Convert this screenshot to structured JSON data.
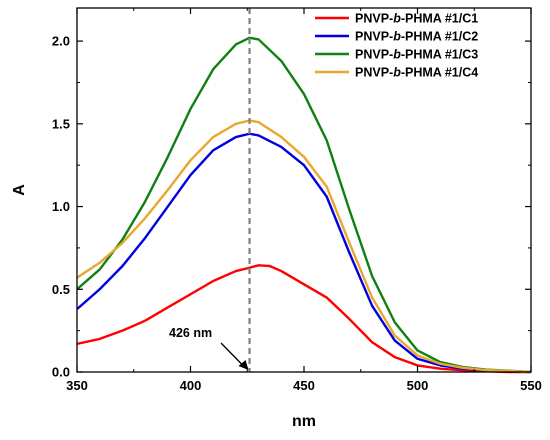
{
  "chart_data": {
    "type": "line",
    "xlabel": "nm",
    "ylabel": "A",
    "xlim": [
      350,
      550
    ],
    "ylim": [
      0.0,
      2.2
    ],
    "x_ticks": [
      "350",
      "400",
      "450",
      "500",
      "550"
    ],
    "y_ticks": [
      "0.0",
      "0.5",
      "1.0",
      "1.5",
      "2.0"
    ],
    "grid": false,
    "legend_position": "top-right",
    "vline": {
      "x": 426,
      "color": "#808080",
      "style": "dashed"
    },
    "annotations": [
      {
        "text": "426 nm",
        "x": 426,
        "y": 0.0
      }
    ],
    "series": [
      {
        "name": "PNVP-b-PHMA #1/C1",
        "color": "#ff0000",
        "x": [
          350,
          360,
          370,
          380,
          390,
          400,
          410,
          420,
          426,
          430,
          435,
          440,
          450,
          460,
          470,
          480,
          490,
          500,
          510,
          520,
          530,
          540,
          550
        ],
        "y": [
          0.17,
          0.2,
          0.25,
          0.31,
          0.39,
          0.47,
          0.55,
          0.61,
          0.63,
          0.645,
          0.64,
          0.61,
          0.53,
          0.45,
          0.32,
          0.18,
          0.09,
          0.04,
          0.02,
          0.01,
          0.005,
          0.0,
          0.0
        ]
      },
      {
        "name": "PNVP-b-PHMA #1/C2",
        "color": "#0000e0",
        "x": [
          350,
          360,
          370,
          380,
          390,
          400,
          410,
          420,
          426,
          430,
          440,
          450,
          460,
          470,
          480,
          490,
          500,
          510,
          520,
          530,
          540,
          550
        ],
        "y": [
          0.38,
          0.5,
          0.64,
          0.81,
          1.0,
          1.19,
          1.34,
          1.42,
          1.44,
          1.43,
          1.36,
          1.25,
          1.06,
          0.72,
          0.4,
          0.19,
          0.08,
          0.04,
          0.02,
          0.01,
          0.005,
          0.0
        ]
      },
      {
        "name": "PNVP-b-PHMA #1/C3",
        "color": "#108010",
        "x": [
          350,
          360,
          370,
          380,
          390,
          400,
          410,
          420,
          426,
          430,
          440,
          450,
          460,
          470,
          480,
          490,
          500,
          510,
          520,
          530,
          540,
          550
        ],
        "y": [
          0.5,
          0.62,
          0.8,
          1.03,
          1.3,
          1.59,
          1.83,
          1.98,
          2.02,
          2.01,
          1.88,
          1.68,
          1.4,
          0.98,
          0.58,
          0.3,
          0.13,
          0.06,
          0.03,
          0.015,
          0.008,
          0.0
        ]
      },
      {
        "name": "PNVP-b-PHMA #1/C4",
        "color": "#e8a830",
        "x": [
          350,
          360,
          370,
          380,
          390,
          400,
          410,
          420,
          426,
          430,
          440,
          450,
          460,
          470,
          480,
          490,
          500,
          510,
          520,
          530,
          540,
          550
        ],
        "y": [
          0.57,
          0.66,
          0.78,
          0.93,
          1.1,
          1.28,
          1.42,
          1.5,
          1.52,
          1.51,
          1.42,
          1.3,
          1.12,
          0.78,
          0.45,
          0.22,
          0.1,
          0.05,
          0.025,
          0.012,
          0.006,
          0.0
        ]
      }
    ]
  }
}
